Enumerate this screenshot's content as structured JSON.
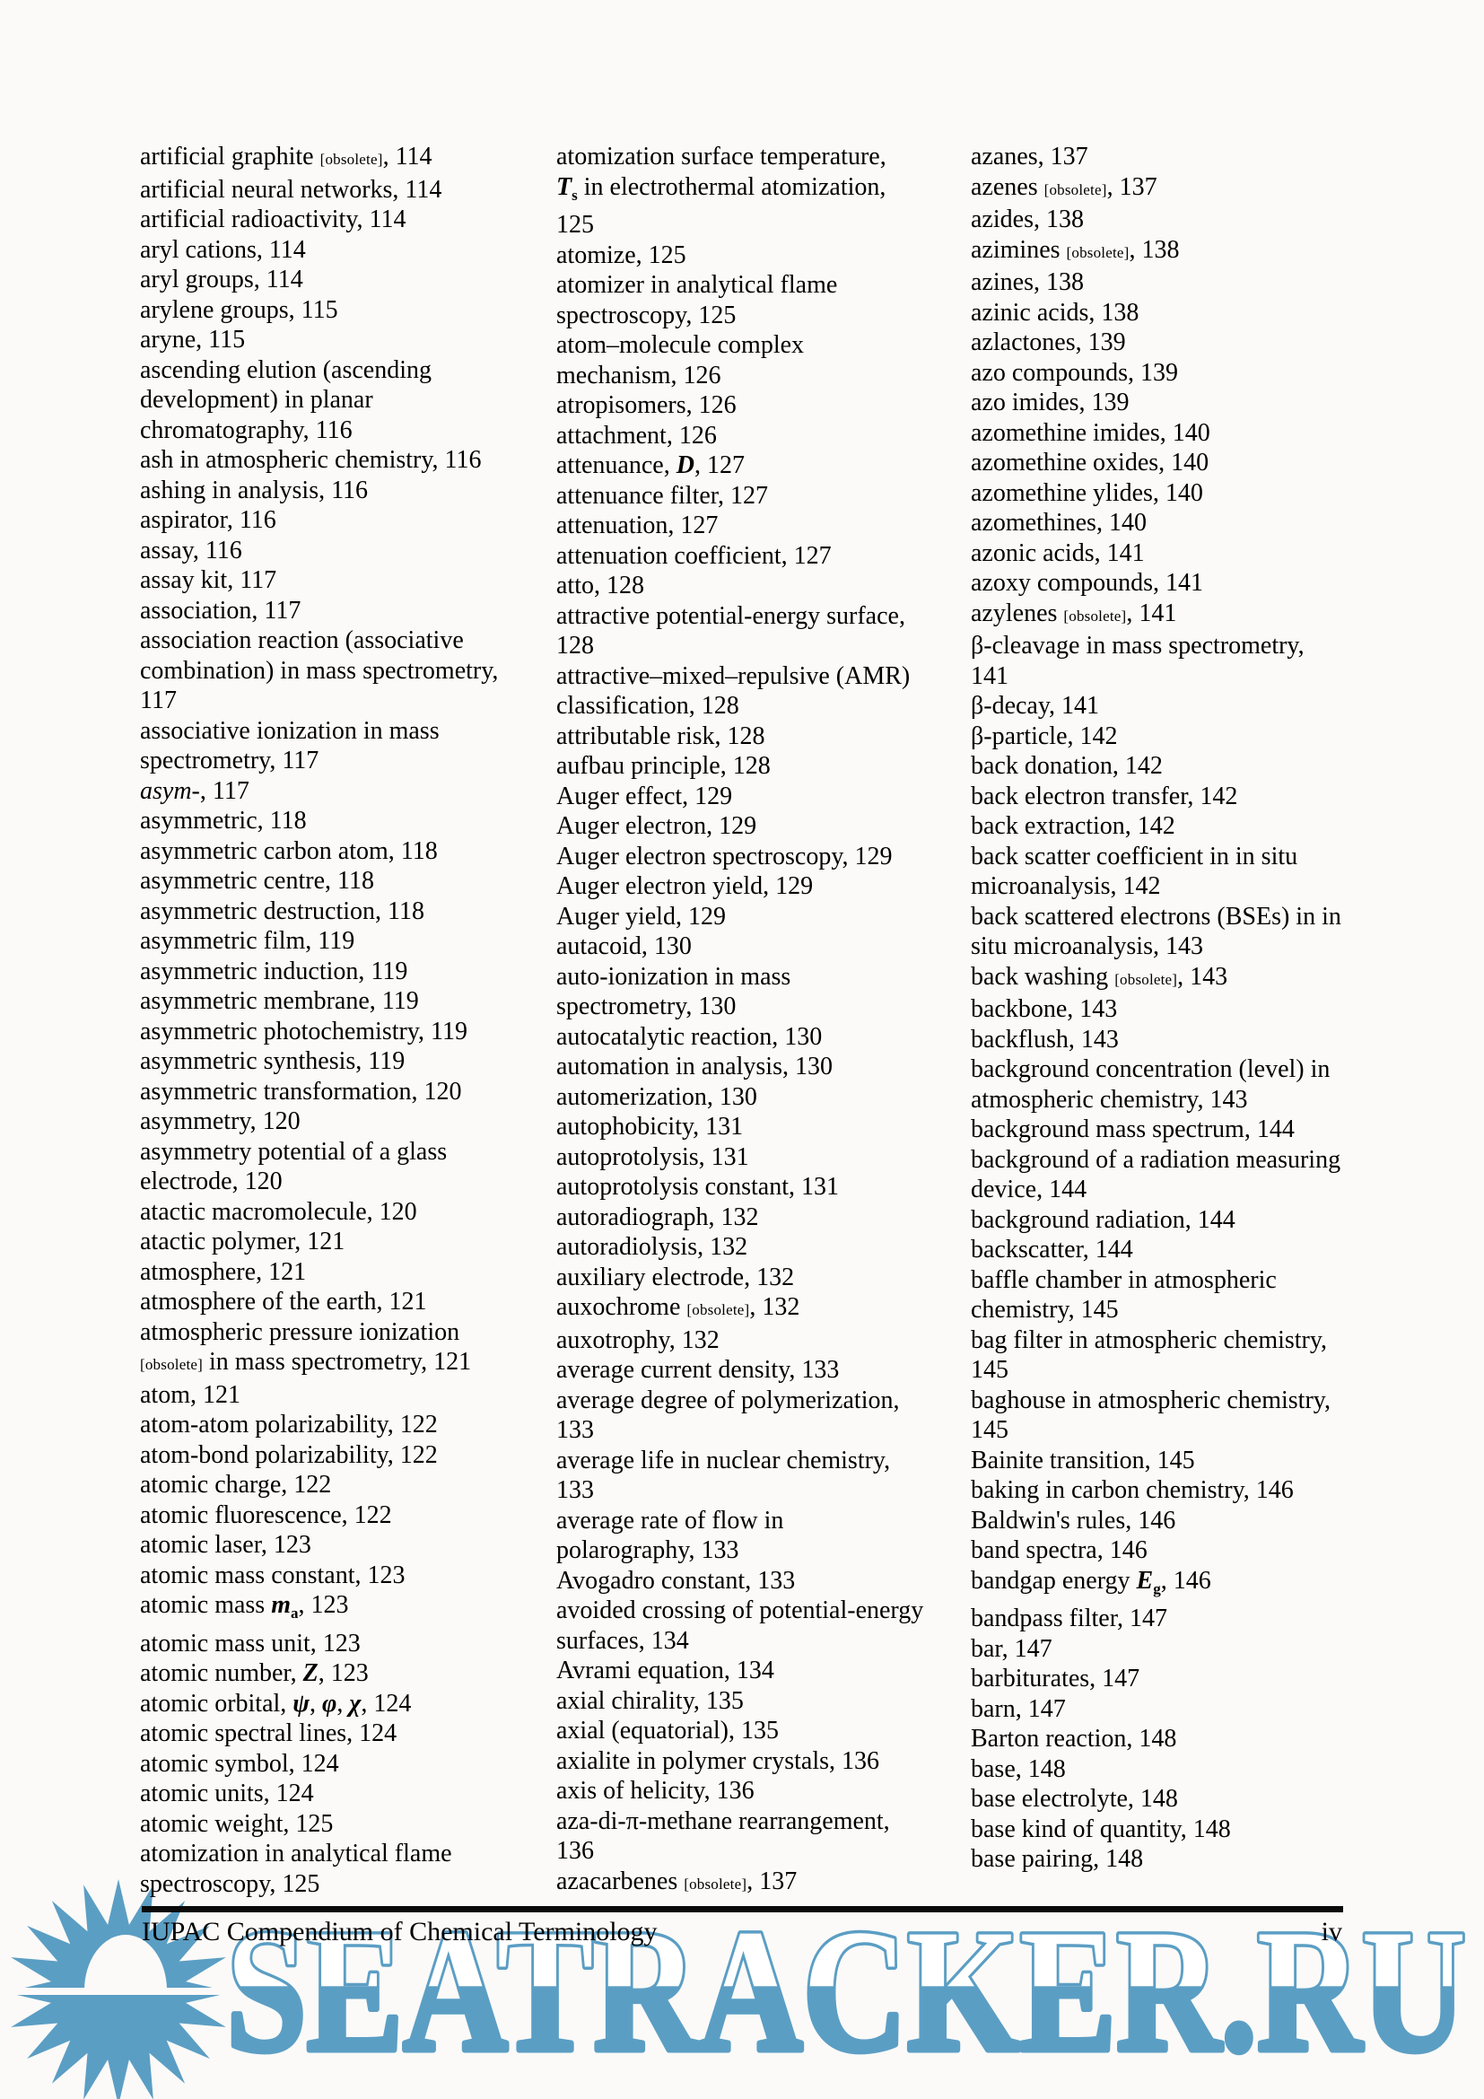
{
  "document": {
    "footer": {
      "book_title": "IUPAC Compendium of Chemical Terminology",
      "page_number": "iv"
    },
    "watermark": {
      "text": "SEATRACKER.RU",
      "color": "#5B9EC4"
    },
    "columns": [
      {
        "lines": [
          [
            [
              "artificial graphite ",
              ""
            ],
            [
              "[obsolete]",
              "obs"
            ],
            [
              ", 114",
              ""
            ]
          ],
          "artificial neural networks, 114",
          "artificial radioactivity, 114",
          "aryl cations, 114",
          "aryl groups, 114",
          "arylene groups, 115",
          "aryne, 115",
          "ascending elution (ascending",
          "development) in planar",
          "chromatography, 116",
          "ash in atmospheric chemistry, 116",
          "ashing in analysis, 116",
          "aspirator, 116",
          "assay, 116",
          "assay kit, 117",
          "association, 117",
          "association reaction (associative",
          "combination) in mass spectrometry,",
          "117",
          "associative ionization in mass",
          "spectrometry, 117",
          [
            [
              "asym-",
              "i"
            ],
            [
              ", 117",
              ""
            ]
          ],
          "asymmetric, 118",
          "asymmetric carbon atom, 118",
          "asymmetric centre, 118",
          "asymmetric destruction, 118",
          "asymmetric film, 119",
          "asymmetric induction, 119",
          "asymmetric membrane, 119",
          "asymmetric photochemistry, 119",
          "asymmetric synthesis, 119",
          "asymmetric transformation, 120",
          "asymmetry, 120",
          "asymmetry potential of a glass",
          "electrode, 120",
          "atactic macromolecule, 120",
          "atactic polymer, 121",
          "atmosphere, 121",
          "atmosphere of the earth, 121",
          "atmospheric pressure ionization",
          [
            [
              "[obsolete]",
              "obs"
            ],
            [
              " in mass spectrometry, 121",
              ""
            ]
          ],
          "atom, 121",
          "atom-atom polarizability, 122",
          "atom-bond polarizability, 122",
          "atomic charge, 122",
          "atomic fluorescence, 122",
          "atomic laser, 123",
          "atomic mass constant, 123",
          [
            [
              "atomic mass ",
              ""
            ],
            [
              "m",
              "bi"
            ],
            [
              "a",
              "sub"
            ],
            [
              ", 123",
              ""
            ]
          ],
          "atomic mass unit, 123",
          [
            [
              "atomic number, ",
              ""
            ],
            [
              "Z",
              "bi"
            ],
            [
              ", 123",
              ""
            ]
          ],
          [
            [
              "atomic orbital, ",
              ""
            ],
            [
              "ψ",
              "bi"
            ],
            [
              ", ",
              ""
            ],
            [
              "φ",
              "bi"
            ],
            [
              ", ",
              ""
            ],
            [
              "χ",
              "bi"
            ],
            [
              ", 124",
              ""
            ]
          ],
          "atomic spectral lines, 124",
          "atomic symbol, 124",
          "atomic units, 124",
          "atomic weight, 125",
          "atomization in analytical flame",
          "spectroscopy, 125"
        ]
      },
      {
        "lines": [
          "atomization surface temperature,",
          [
            [
              "T",
              "bi"
            ],
            [
              "s",
              "sub"
            ],
            [
              " in electrothermal atomization,",
              ""
            ]
          ],
          "125",
          "atomize, 125",
          "atomizer in analytical flame",
          "spectroscopy, 125",
          "atom–molecule complex",
          "mechanism, 126",
          "atropisomers, 126",
          "attachment, 126",
          [
            [
              "attenuance, ",
              ""
            ],
            [
              "D",
              "bi"
            ],
            [
              ", 127",
              ""
            ]
          ],
          "attenuance filter, 127",
          "attenuation, 127",
          "attenuation coefficient, 127",
          "atto, 128",
          "attractive potential-energy surface,",
          "128",
          "attractive–mixed–repulsive (AMR)",
          "classification, 128",
          "attributable risk, 128",
          "aufbau principle, 128",
          "Auger effect, 129",
          "Auger electron, 129",
          "Auger electron spectroscopy, 129",
          "Auger electron yield, 129",
          "Auger yield, 129",
          "autacoid, 130",
          "auto-ionization in mass",
          "spectrometry, 130",
          "autocatalytic reaction, 130",
          "automation in analysis, 130",
          "automerization, 130",
          "autophobicity, 131",
          "autoprotolysis, 131",
          "autoprotolysis constant, 131",
          "autoradiograph, 132",
          "autoradiolysis, 132",
          "auxiliary electrode, 132",
          [
            [
              "auxochrome ",
              ""
            ],
            [
              "[obsolete]",
              "obs"
            ],
            [
              ", 132",
              ""
            ]
          ],
          "auxotrophy, 132",
          "average current density, 133",
          "average degree of polymerization,",
          "133",
          "average life in nuclear chemistry,",
          "133",
          "average rate of flow in",
          "polarography, 133",
          "Avogadro constant, 133",
          "avoided crossing of potential-energy",
          "surfaces, 134",
          "Avrami equation, 134",
          "axial chirality, 135",
          "axial (equatorial), 135",
          "axialite in polymer crystals, 136",
          "axis of helicity, 136",
          "aza-di-π-methane rearrangement,",
          "136",
          [
            [
              "azacarbenes ",
              ""
            ],
            [
              "[obsolete]",
              "obs"
            ],
            [
              ", 137",
              ""
            ]
          ]
        ]
      },
      {
        "lines": [
          "azanes, 137",
          [
            [
              "azenes ",
              ""
            ],
            [
              "[obsolete]",
              "obs"
            ],
            [
              ", 137",
              ""
            ]
          ],
          "azides, 138",
          [
            [
              "azimines ",
              ""
            ],
            [
              "[obsolete]",
              "obs"
            ],
            [
              ", 138",
              ""
            ]
          ],
          "azines, 138",
          "azinic acids, 138",
          "azlactones, 139",
          "azo compounds, 139",
          "azo imides, 139",
          "azomethine imides, 140",
          "azomethine oxides, 140",
          "azomethine ylides, 140",
          "azomethines, 140",
          "azonic acids, 141",
          "azoxy compounds, 141",
          [
            [
              "azylenes ",
              ""
            ],
            [
              "[obsolete]",
              "obs"
            ],
            [
              ", 141",
              ""
            ]
          ],
          "β-cleavage in mass spectrometry,",
          "141",
          "β-decay, 141",
          "β-particle, 142",
          "back donation, 142",
          "back electron transfer, 142",
          "back extraction, 142",
          "back scatter coefficient in in situ",
          "microanalysis, 142",
          "back scattered electrons (BSEs) in in",
          "situ microanalysis, 143",
          [
            [
              "back washing ",
              ""
            ],
            [
              "[obsolete]",
              "obs"
            ],
            [
              ", 143",
              ""
            ]
          ],
          "backbone, 143",
          "backflush, 143",
          "background concentration (level) in",
          "atmospheric chemistry, 143",
          "background mass spectrum, 144",
          "background of a radiation measuring",
          "device, 144",
          "background radiation, 144",
          "backscatter, 144",
          "baffle chamber in atmospheric",
          "chemistry, 145",
          "bag filter in atmospheric chemistry,",
          "145",
          "baghouse in atmospheric chemistry,",
          "145",
          "Bainite transition, 145",
          "baking in carbon chemistry, 146",
          "Baldwin's rules, 146",
          "band spectra, 146",
          [
            [
              "bandgap energy ",
              ""
            ],
            [
              "E",
              "bi"
            ],
            [
              "g",
              "sub"
            ],
            [
              ", 146",
              ""
            ]
          ],
          "bandpass filter, 147",
          "bar, 147",
          "barbiturates, 147",
          "barn, 147",
          "Barton reaction, 148",
          "base, 148",
          "base electrolyte, 148",
          "base kind of quantity, 148",
          "base pairing, 148"
        ]
      }
    ]
  }
}
